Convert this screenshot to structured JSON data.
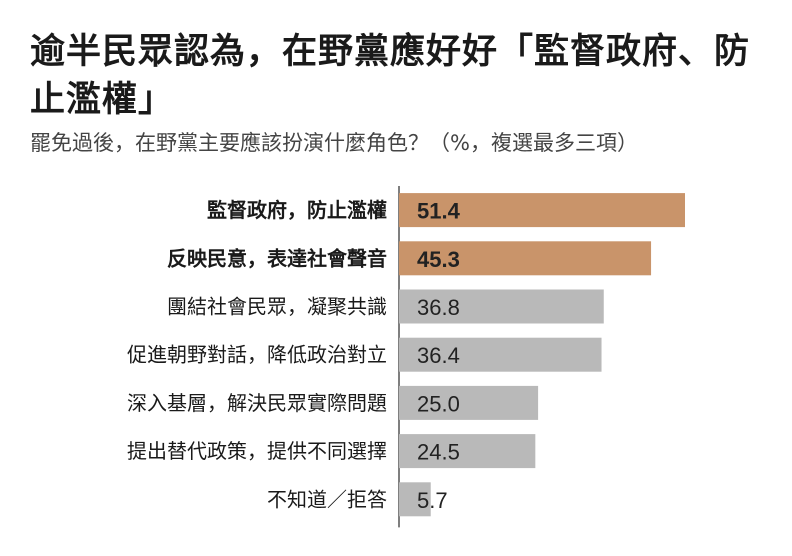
{
  "title": "逾半民眾認為，在野黨應好好「監督政府、防止濫權」",
  "subtitle": "罷免過後，在野黨主要應該扮演什麼角色？（%，複選最多三項）",
  "colors": {
    "highlight": "#c9946a",
    "normal": "#b9b9b9",
    "axis": "#555555"
  },
  "chart_data": {
    "type": "bar",
    "orientation": "horizontal",
    "categories": [
      "監督政府，防止濫權",
      "反映民意，表達社會聲音",
      "團結社會民眾，凝聚共識",
      "促進朝野對話，降低政治對立",
      "深入基層，解決民眾實際問題",
      "提出替代政策，提供不同選擇",
      "不知道／拒答"
    ],
    "values": [
      51.4,
      45.3,
      36.8,
      36.4,
      25.0,
      24.5,
      5.7
    ],
    "value_labels": [
      "51.4",
      "45.3",
      "36.8",
      "36.4",
      "25.0",
      "24.5",
      "5.7"
    ],
    "highlighted": [
      true,
      true,
      false,
      false,
      false,
      false,
      false
    ],
    "xlim": [
      0,
      60
    ],
    "grid": false,
    "title": "逾半民眾認為，在野黨應好好「監督政府、防止濫權」",
    "subtitle": "罷免過後，在野黨主要應該扮演什麼角色？（%，複選最多三項）"
  }
}
